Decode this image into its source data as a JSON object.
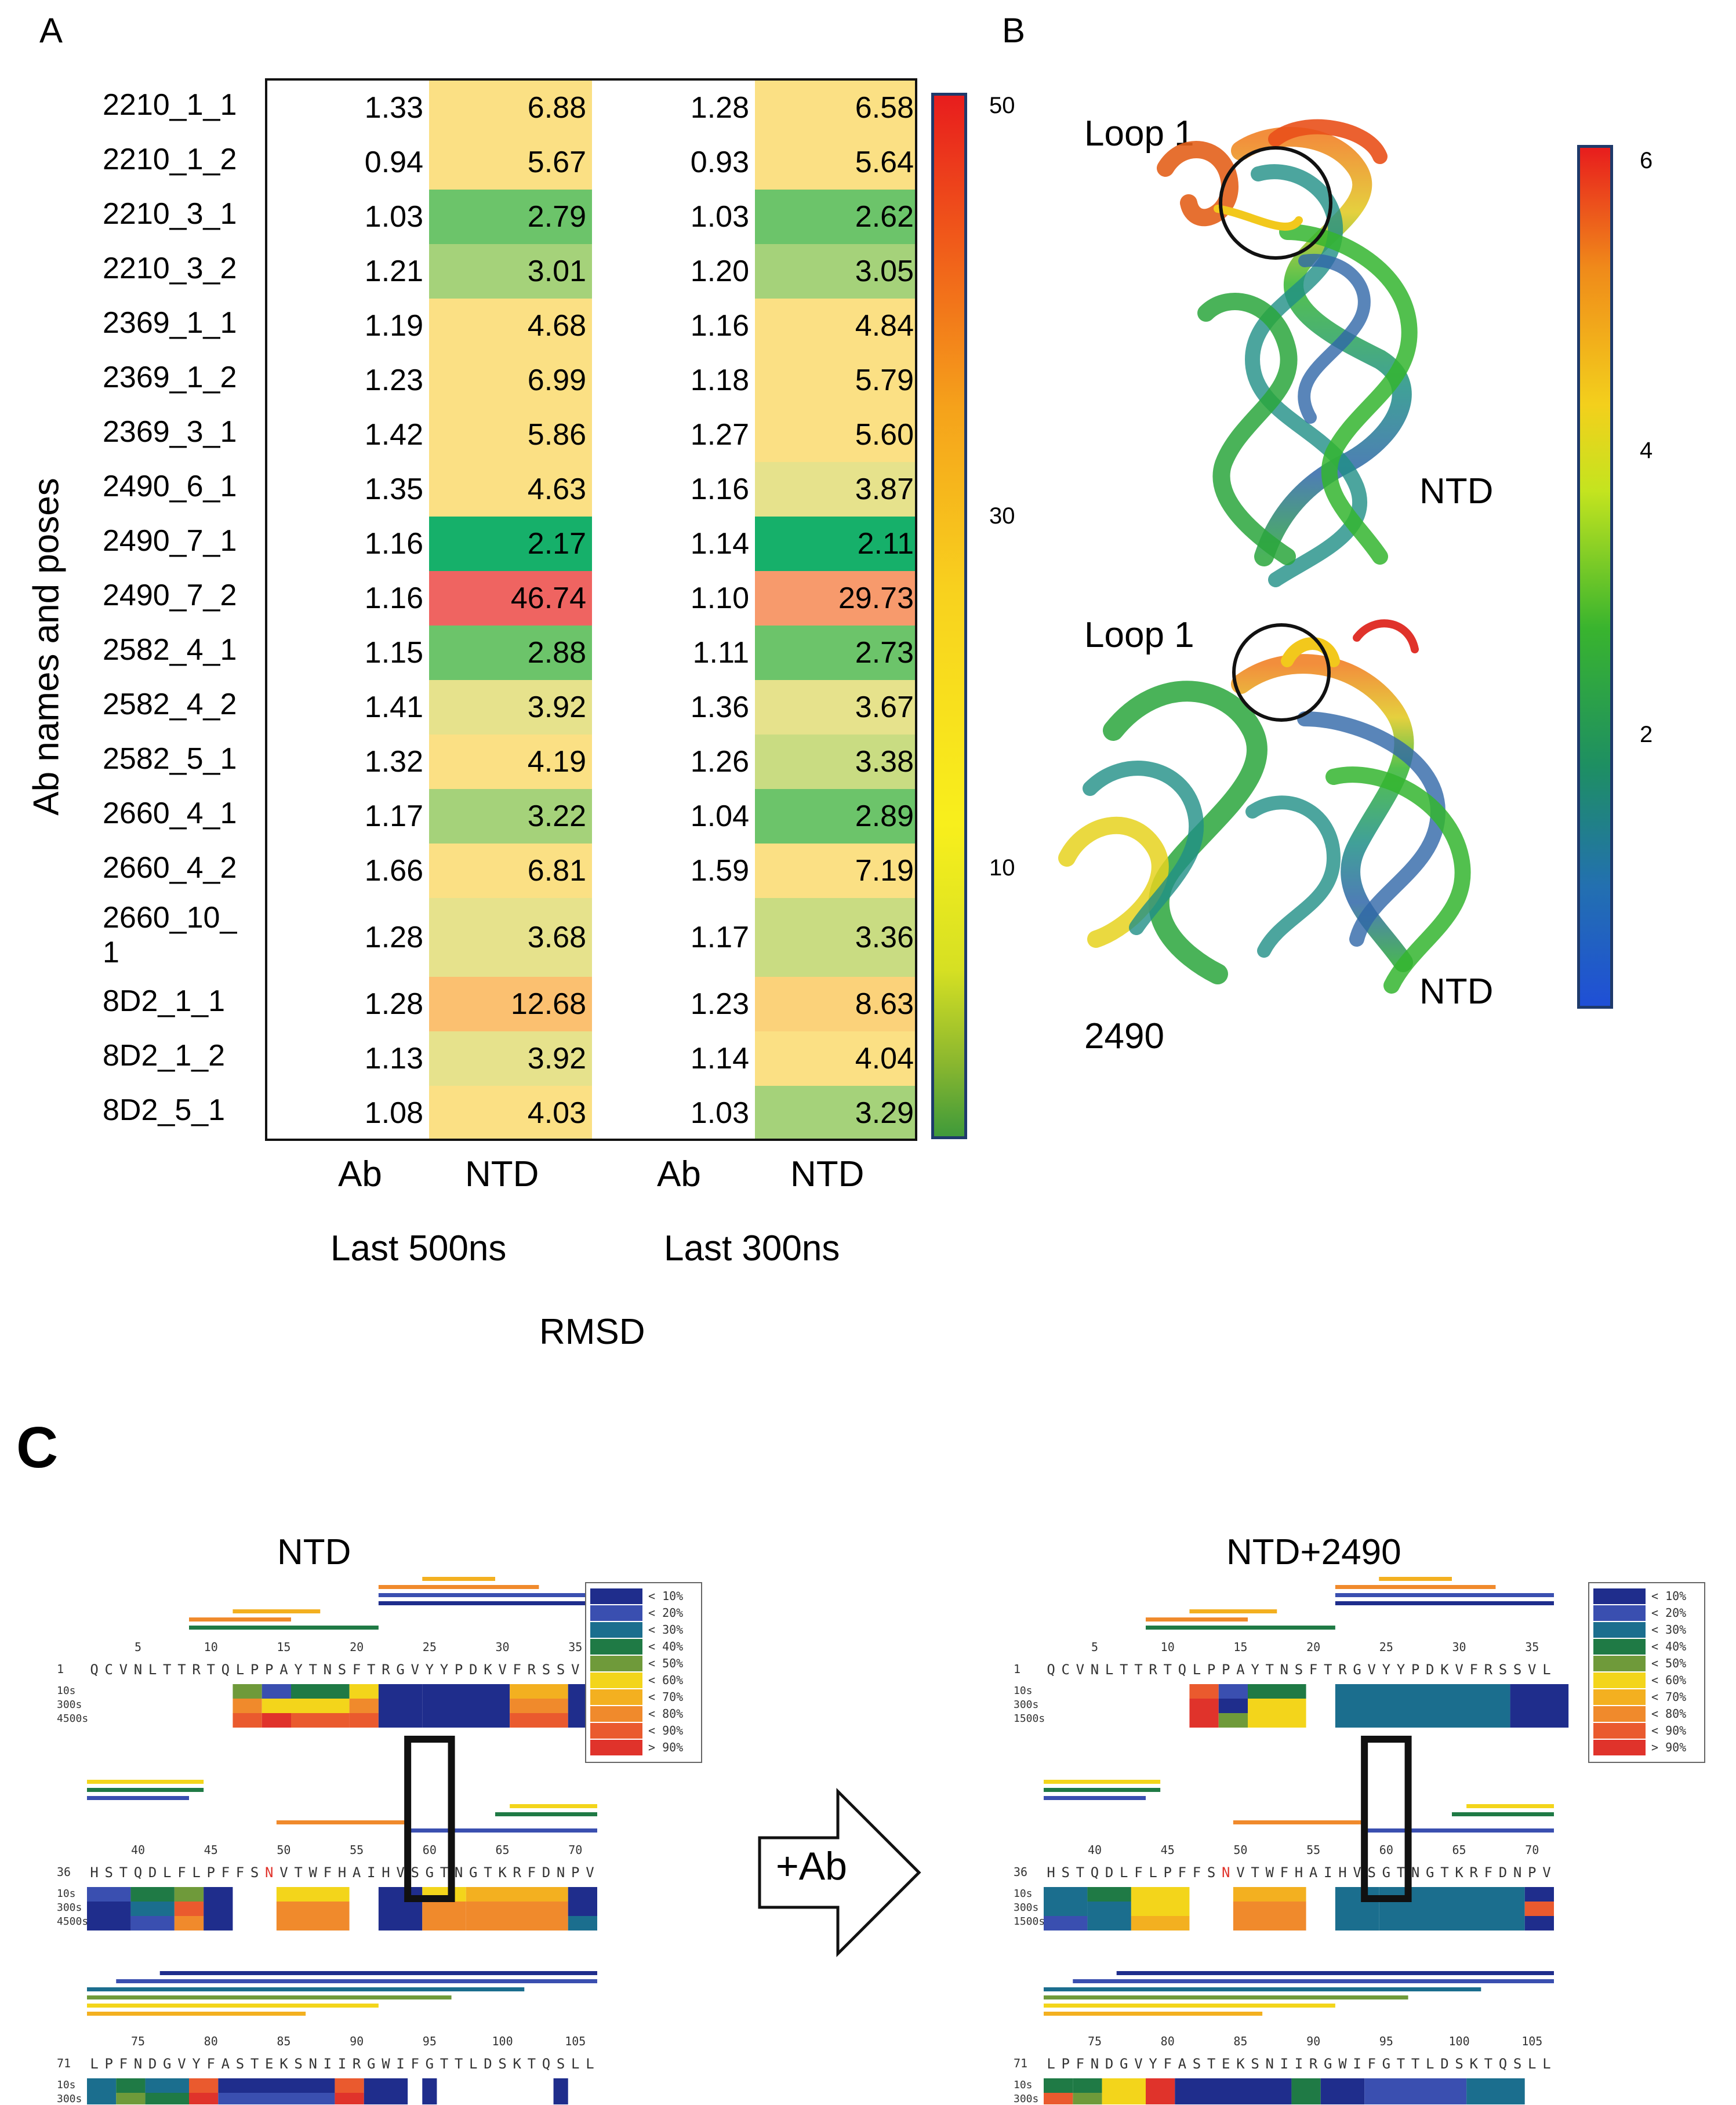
{
  "panels": {
    "A": "A",
    "B": "B",
    "C": "C"
  },
  "heatmap": {
    "ylabel": "Ab names and poses",
    "col_headers": [
      "Ab",
      "NTD",
      "Ab",
      "NTD"
    ],
    "group_labels": [
      "Last 500ns",
      "Last 300ns"
    ],
    "xlabel": "RMSD",
    "rows": [
      {
        "name": "2210_1_1",
        "values": [
          "1.33",
          "6.88",
          "1.28",
          "6.58"
        ]
      },
      {
        "name": "2210_1_2",
        "values": [
          "0.94",
          "5.67",
          "0.93",
          "5.64"
        ]
      },
      {
        "name": "2210_3_1",
        "values": [
          "1.03",
          "2.79",
          "1.03",
          "2.62"
        ]
      },
      {
        "name": "2210_3_2",
        "values": [
          "1.21",
          "3.01",
          "1.20",
          "3.05"
        ]
      },
      {
        "name": "2369_1_1",
        "values": [
          "1.19",
          "4.68",
          "1.16",
          "4.84"
        ]
      },
      {
        "name": "2369_1_2",
        "values": [
          "1.23",
          "6.99",
          "1.18",
          "5.79"
        ]
      },
      {
        "name": "2369_3_1",
        "values": [
          "1.42",
          "5.86",
          "1.27",
          "5.60"
        ]
      },
      {
        "name": "2490_6_1",
        "values": [
          "1.35",
          "4.63",
          "1.16",
          "3.87"
        ]
      },
      {
        "name": "2490_7_1",
        "values": [
          "1.16",
          "2.17",
          "1.14",
          "2.11"
        ]
      },
      {
        "name": "2490_7_2",
        "values": [
          "1.16",
          "46.74",
          "1.10",
          "29.73"
        ]
      },
      {
        "name": "2582_4_1",
        "values": [
          "1.15",
          "2.88",
          "1.11",
          "2.73"
        ]
      },
      {
        "name": "2582_4_2",
        "values": [
          "1.41",
          "3.92",
          "1.36",
          "3.67"
        ]
      },
      {
        "name": "2582_5_1",
        "values": [
          "1.32",
          "4.19",
          "1.26",
          "3.38"
        ]
      },
      {
        "name": "2660_4_1",
        "values": [
          "1.17",
          "3.22",
          "1.04",
          "2.89"
        ]
      },
      {
        "name": "2660_4_2",
        "values": [
          "1.66",
          "6.81",
          "1.59",
          "7.19"
        ]
      },
      {
        "name": "2660_10_1",
        "name_lines": [
          "2660_10_",
          "1"
        ],
        "values": [
          "1.28",
          "3.68",
          "1.17",
          "3.36"
        ]
      },
      {
        "name": "8D2_1_1",
        "values": [
          "1.28",
          "12.68",
          "1.23",
          "8.63"
        ]
      },
      {
        "name": "8D2_1_2",
        "values": [
          "1.13",
          "3.92",
          "1.14",
          "4.04"
        ]
      },
      {
        "name": "8D2_5_1",
        "values": [
          "1.08",
          "4.03",
          "1.03",
          "3.29"
        ]
      }
    ],
    "colorbar": {
      "ticks": [
        "50",
        "30",
        "10"
      ],
      "min": 0,
      "max": 50
    }
  },
  "structures": {
    "loop_label": "Loop 1",
    "ntd_label": "NTD",
    "ab_label": "2490",
    "colorbar": {
      "ticks": [
        "6",
        "4",
        "2"
      ]
    }
  },
  "hdx": {
    "left_title": "NTD",
    "right_title": "NTD+2490",
    "arrow_label": "+Ab",
    "segments": [
      {
        "start": 1,
        "seq": "QCVNLTTRTQLPPAYTNSFTRGVYYPDKVFRSSVL",
        "ticks": [
          "5",
          "10",
          "15",
          "20",
          "25",
          "30",
          "35"
        ]
      },
      {
        "start": 36,
        "seq": "HSTQDLFLPFFSNVTWFHAIHVSGTNGTKRFDNPV",
        "ticks": [
          "40",
          "45",
          "50",
          "55",
          "60",
          "65",
          "70"
        ],
        "highlight_index": 12
      },
      {
        "start": 71,
        "seq": "LPFNDGVYFASTEKSNIIRGWIFGTTLDSKTQSLL",
        "ticks": [
          "75",
          "80",
          "85",
          "90",
          "95",
          "100",
          "105"
        ]
      }
    ],
    "left_times": [
      "10s",
      "300s",
      "4500s"
    ],
    "right_times": [
      "10s",
      "300s",
      "1500s"
    ],
    "legend": [
      "< 10%",
      "< 20%",
      "< 30%",
      "< 40%",
      "< 50%",
      "< 60%",
      "< 70%",
      "< 80%",
      "< 90%",
      "> 90%"
    ],
    "legend_colors": [
      "#1f2d8c",
      "#3a4fb0",
      "#1b6e8e",
      "#1f7a45",
      "#6f9a3a",
      "#f3d51b",
      "#f3b020",
      "#f08a2c",
      "#ea5a2e",
      "#e0332b"
    ]
  }
}
